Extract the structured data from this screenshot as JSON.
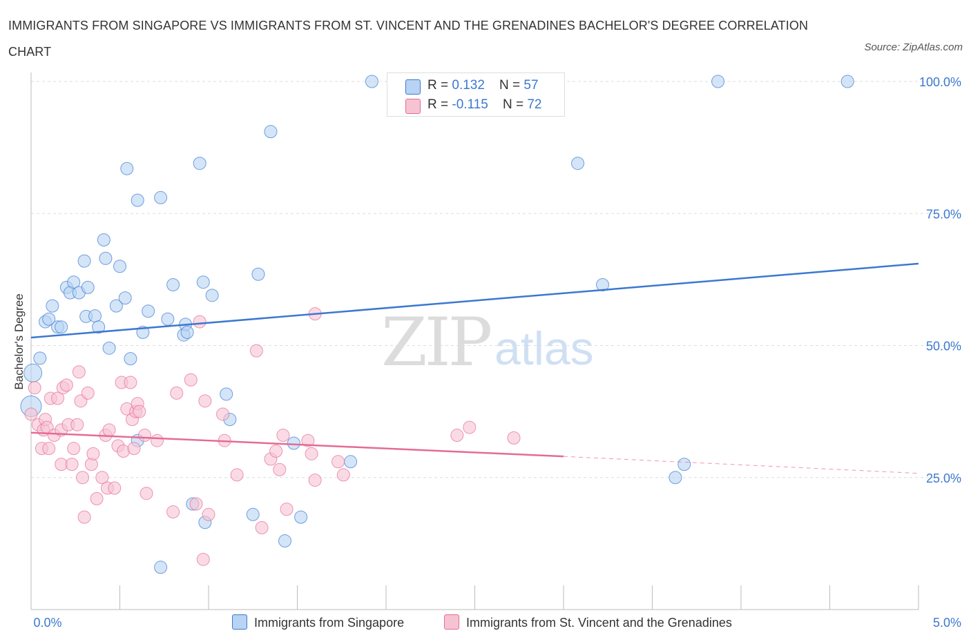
{
  "title": "IMMIGRANTS FROM SINGAPORE VS IMMIGRANTS FROM ST. VINCENT AND THE GRENADINES BACHELOR'S DEGREE CORRELATION CHART",
  "source": "Source: ZipAtlas.com",
  "watermark_zip": "ZIP",
  "watermark_atlas": "atlas",
  "colors": {
    "blue": "#3b78d0",
    "blue_fill": "#b8d3f3",
    "pink": "#e56b93",
    "pink_fill": "#f6c3d3",
    "axis_text": "#3b78d0",
    "grid": "#dddddd"
  },
  "legend": {
    "rows": [
      {
        "r_label": "R = ",
        "r_value": " 0.132",
        "n_label": "N = ",
        "n_value": "57"
      },
      {
        "r_label": "R = ",
        "r_value": "-0.115",
        "n_label": "N = ",
        "n_value": "72"
      }
    ]
  },
  "bottom_legend": {
    "series1": "Immigrants from Singapore",
    "series2": "Immigrants from St. Vincent and the Grenadines"
  },
  "chart_data": {
    "type": "scatter",
    "title": "IMMIGRANTS FROM SINGAPORE VS IMMIGRANTS FROM ST. VINCENT AND THE GRENADINES BACHELOR'S DEGREE CORRELATION CHART",
    "xlabel": "",
    "ylabel": "Bachelor's Degree",
    "xlim": [
      0,
      5
    ],
    "ylim": [
      0,
      100
    ],
    "x_tick_labels": [
      "0.0%",
      "5.0%"
    ],
    "y_ticks": [
      25,
      50,
      75,
      100
    ],
    "y_tick_labels": [
      "25.0%",
      "50.0%",
      "75.0%",
      "100.0%"
    ],
    "grid": true,
    "series": [
      {
        "name": "Immigrants from Singapore",
        "color": "#3b78d0",
        "R": 0.132,
        "N": 57,
        "trend": {
          "x": [
            0,
            5
          ],
          "y": [
            51.5,
            65.5
          ]
        },
        "points": [
          [
            0.0,
            38.5
          ],
          [
            0.01,
            44.8
          ],
          [
            0.05,
            47.6
          ],
          [
            0.08,
            54.5
          ],
          [
            0.1,
            55.0
          ],
          [
            0.12,
            57.5
          ],
          [
            0.15,
            53.5
          ],
          [
            0.17,
            53.5
          ],
          [
            0.2,
            61.0
          ],
          [
            0.22,
            60.0
          ],
          [
            0.24,
            62.0
          ],
          [
            0.27,
            60.0
          ],
          [
            0.3,
            66.0
          ],
          [
            0.32,
            61.0
          ],
          [
            0.31,
            55.5
          ],
          [
            0.36,
            55.6
          ],
          [
            0.38,
            53.5
          ],
          [
            0.41,
            70.0
          ],
          [
            0.42,
            66.5
          ],
          [
            0.44,
            49.5
          ],
          [
            0.48,
            57.5
          ],
          [
            0.5,
            65.0
          ],
          [
            0.53,
            59.0
          ],
          [
            0.54,
            83.5
          ],
          [
            0.56,
            47.5
          ],
          [
            0.6,
            77.5
          ],
          [
            0.6,
            32.0
          ],
          [
            0.63,
            52.5
          ],
          [
            0.66,
            56.5
          ],
          [
            0.73,
            78.0
          ],
          [
            0.77,
            55.0
          ],
          [
            0.8,
            61.5
          ],
          [
            0.86,
            52.0
          ],
          [
            0.87,
            54.0
          ],
          [
            0.88,
            52.5
          ],
          [
            0.91,
            20.0
          ],
          [
            0.95,
            84.5
          ],
          [
            0.97,
            62.0
          ],
          [
            1.02,
            59.5
          ],
          [
            1.1,
            40.8
          ],
          [
            1.12,
            36.0
          ],
          [
            0.73,
            8.0
          ],
          [
            0.98,
            16.5
          ],
          [
            1.25,
            18.0
          ],
          [
            1.28,
            63.5
          ],
          [
            1.35,
            90.5
          ],
          [
            1.43,
            13.0
          ],
          [
            1.48,
            31.5
          ],
          [
            1.52,
            17.5
          ],
          [
            1.8,
            28.0
          ],
          [
            1.92,
            100.0
          ],
          [
            3.08,
            84.5
          ],
          [
            3.22,
            61.5
          ],
          [
            3.63,
            25.0
          ],
          [
            3.68,
            27.5
          ],
          [
            3.87,
            100.0
          ],
          [
            4.6,
            100.0
          ]
        ]
      },
      {
        "name": "Immigrants from St. Vincent and the Grenadines",
        "color": "#e56b93",
        "R": -0.115,
        "N": 72,
        "trend": {
          "x": [
            0,
            3.0
          ],
          "y": [
            33.5,
            29.0
          ]
        },
        "trend_dashed": {
          "x": [
            3.0,
            5
          ],
          "y": [
            29.0,
            25.8
          ]
        },
        "points": [
          [
            0.0,
            37.0
          ],
          [
            0.02,
            42.0
          ],
          [
            0.04,
            35.0
          ],
          [
            0.06,
            30.5
          ],
          [
            0.07,
            34.0
          ],
          [
            0.08,
            36.0
          ],
          [
            0.09,
            34.5
          ],
          [
            0.1,
            30.5
          ],
          [
            0.11,
            40.0
          ],
          [
            0.13,
            33.0
          ],
          [
            0.15,
            40.0
          ],
          [
            0.17,
            27.5
          ],
          [
            0.17,
            34.0
          ],
          [
            0.18,
            42.0
          ],
          [
            0.2,
            42.5
          ],
          [
            0.21,
            35.0
          ],
          [
            0.23,
            27.5
          ],
          [
            0.24,
            30.5
          ],
          [
            0.26,
            35.0
          ],
          [
            0.27,
            45.0
          ],
          [
            0.28,
            39.5
          ],
          [
            0.29,
            25.0
          ],
          [
            0.3,
            17.5
          ],
          [
            0.32,
            41.0
          ],
          [
            0.34,
            27.5
          ],
          [
            0.35,
            29.5
          ],
          [
            0.37,
            21.0
          ],
          [
            0.4,
            25.0
          ],
          [
            0.42,
            33.0
          ],
          [
            0.43,
            23.0
          ],
          [
            0.44,
            34.0
          ],
          [
            0.47,
            23.0
          ],
          [
            0.49,
            31.0
          ],
          [
            0.51,
            43.0
          ],
          [
            0.52,
            30.0
          ],
          [
            0.54,
            38.0
          ],
          [
            0.56,
            43.0
          ],
          [
            0.57,
            36.0
          ],
          [
            0.59,
            37.5
          ],
          [
            0.6,
            39.0
          ],
          [
            0.61,
            37.5
          ],
          [
            0.64,
            33.0
          ],
          [
            0.65,
            22.0
          ],
          [
            0.71,
            32.0
          ],
          [
            0.8,
            18.5
          ],
          [
            0.82,
            41.0
          ],
          [
            0.9,
            43.5
          ],
          [
            0.93,
            20.0
          ],
          [
            0.95,
            54.5
          ],
          [
            0.97,
            9.5
          ],
          [
            0.98,
            39.5
          ],
          [
            1.0,
            18.0
          ],
          [
            1.08,
            37.0
          ],
          [
            1.09,
            32.0
          ],
          [
            1.16,
            25.5
          ],
          [
            1.27,
            49.0
          ],
          [
            1.3,
            15.5
          ],
          [
            1.35,
            28.5
          ],
          [
            1.38,
            30.0
          ],
          [
            1.4,
            26.5
          ],
          [
            1.42,
            33.0
          ],
          [
            1.44,
            19.0
          ],
          [
            1.56,
            32.0
          ],
          [
            1.58,
            29.5
          ],
          [
            1.6,
            24.5
          ],
          [
            1.6,
            56.0
          ],
          [
            1.73,
            28.0
          ],
          [
            1.76,
            25.5
          ],
          [
            2.4,
            33.0
          ],
          [
            2.47,
            34.5
          ],
          [
            2.72,
            32.5
          ],
          [
            0.58,
            30.5
          ]
        ]
      }
    ]
  }
}
